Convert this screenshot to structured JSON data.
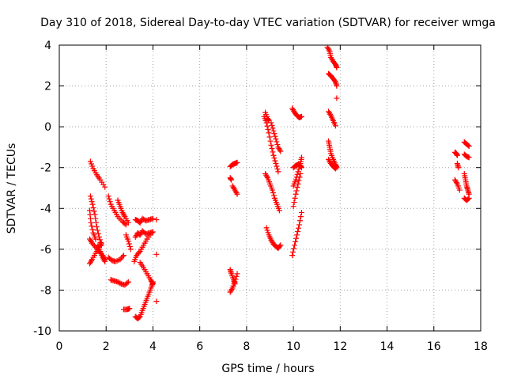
{
  "chart_data": {
    "type": "scatter",
    "title": "Day 310 of 2018, Sidereal Day-to-day VTEC variation (SDTVAR) for receiver wmga",
    "xlabel": "GPS time / hours",
    "ylabel": "SDTVAR / TECUs",
    "xlim": [
      0,
      18
    ],
    "ylim": [
      -10,
      4
    ],
    "xticks": [
      0,
      2,
      4,
      6,
      8,
      10,
      12,
      14,
      16,
      18
    ],
    "yticks": [
      -10,
      -8,
      -6,
      -4,
      -2,
      0,
      2,
      4
    ],
    "grid": true,
    "marker": "+",
    "marker_color": "#ff0000",
    "tracks": [
      {
        "x": [
          1.33,
          1.45,
          1.6,
          1.75,
          1.95
        ],
        "y": [
          -1.7,
          -2.05,
          -2.35,
          -2.6,
          -2.95
        ]
      },
      {
        "x": [
          1.33,
          1.42,
          1.52,
          1.6,
          1.7,
          1.8
        ],
        "y": [
          -3.4,
          -3.8,
          -4.3,
          -4.9,
          -5.4,
          -5.8
        ]
      },
      {
        "x": [
          1.3,
          1.35,
          1.45,
          1.55
        ],
        "y": [
          -4.1,
          -4.7,
          -5.2,
          -5.5
        ]
      },
      {
        "x": [
          1.3,
          1.4,
          1.55,
          1.7,
          1.85,
          1.95
        ],
        "y": [
          -5.5,
          -5.7,
          -5.9,
          -6.1,
          -6.3,
          -6.5
        ]
      },
      {
        "x": [
          1.3,
          1.4,
          1.55,
          1.7,
          1.8
        ],
        "y": [
          -6.7,
          -6.5,
          -6.2,
          -5.9,
          -5.7
        ]
      },
      {
        "x": [
          1.65,
          1.75,
          1.85,
          1.95
        ],
        "y": [
          -5.8,
          -6.1,
          -6.4,
          -6.6
        ]
      },
      {
        "x": [
          2.1,
          2.2,
          2.35,
          2.5,
          2.7,
          2.85
        ],
        "y": [
          -3.4,
          -3.8,
          -4.1,
          -4.4,
          -4.65,
          -4.8
        ]
      },
      {
        "x": [
          2.5,
          2.6,
          2.7,
          2.8,
          2.95
        ],
        "y": [
          -3.6,
          -3.9,
          -4.2,
          -4.4,
          -4.7
        ]
      },
      {
        "x": [
          2.1,
          2.25,
          2.4,
          2.6,
          2.75
        ],
        "y": [
          -6.4,
          -6.55,
          -6.6,
          -6.5,
          -6.3
        ]
      },
      {
        "x": [
          2.85,
          2.95,
          3.05
        ],
        "y": [
          -5.3,
          -5.6,
          -6.0
        ]
      },
      {
        "x": [
          2.2,
          2.35,
          2.5,
          2.65,
          2.8,
          2.95
        ],
        "y": [
          -7.5,
          -7.55,
          -7.6,
          -7.7,
          -7.75,
          -7.6
        ]
      },
      {
        "x": [
          2.75,
          2.9,
          3.0
        ],
        "y": [
          -8.95,
          -8.95,
          -8.9
        ]
      },
      {
        "x": [
          3.25,
          3.35,
          3.45,
          3.55,
          3.7,
          3.85,
          4.0
        ],
        "y": [
          -4.55,
          -4.6,
          -4.7,
          -4.5,
          -4.6,
          -4.55,
          -4.5
        ]
      },
      {
        "x": [
          3.25,
          3.35,
          3.45,
          3.55,
          3.7,
          3.85,
          4.0
        ],
        "y": [
          -5.4,
          -5.2,
          -5.3,
          -5.1,
          -5.25,
          -5.2,
          -5.15
        ]
      },
      {
        "x": [
          3.2,
          3.3,
          3.45,
          3.6,
          3.75,
          3.95
        ],
        "y": [
          -6.6,
          -6.3,
          -6.1,
          -5.8,
          -5.5,
          -5.2
        ]
      },
      {
        "x": [
          3.45,
          3.6,
          3.75,
          3.9,
          4.0
        ],
        "y": [
          -6.65,
          -6.9,
          -7.2,
          -7.5,
          -7.7
        ]
      },
      {
        "x": [
          3.25,
          3.35,
          3.45,
          3.55,
          3.65,
          3.75,
          3.85,
          3.95,
          4.0
        ],
        "y": [
          -9.3,
          -9.4,
          -9.3,
          -9.0,
          -8.7,
          -8.4,
          -8.1,
          -7.8,
          -7.6
        ]
      },
      {
        "x": [
          4.15
        ],
        "y": [
          -8.55
        ]
      },
      {
        "x": [
          4.15
        ],
        "y": [
          -6.25
        ]
      },
      {
        "x": [
          4.15
        ],
        "y": [
          -4.55
        ]
      },
      {
        "x": [
          7.3,
          7.4,
          7.5,
          7.6
        ],
        "y": [
          -1.95,
          -1.85,
          -1.8,
          -1.75
        ]
      },
      {
        "x": [
          7.3,
          7.35
        ],
        "y": [
          -2.5,
          -2.6
        ]
      },
      {
        "x": [
          7.4,
          7.5,
          7.6
        ],
        "y": [
          -2.9,
          -3.1,
          -3.3
        ]
      },
      {
        "x": [
          7.3,
          7.35,
          7.45,
          7.5
        ],
        "y": [
          -7.0,
          -7.2,
          -7.5,
          -7.7
        ]
      },
      {
        "x": [
          7.3,
          7.4,
          7.5,
          7.6
        ],
        "y": [
          -8.1,
          -7.9,
          -7.6,
          -7.2
        ]
      },
      {
        "x": [
          8.75,
          8.85,
          8.95,
          9.05,
          9.15,
          9.25,
          9.35
        ],
        "y": [
          0.5,
          0.2,
          -0.3,
          -0.9,
          -1.4,
          -1.8,
          -2.2
        ]
      },
      {
        "x": [
          8.8,
          8.9,
          8.95
        ],
        "y": [
          0.7,
          0.4,
          0.3
        ]
      },
      {
        "x": [
          9.05,
          9.15,
          9.25,
          9.35,
          9.45
        ],
        "y": [
          0.2,
          -0.2,
          -0.6,
          -1.0,
          -1.2
        ]
      },
      {
        "x": [
          8.8,
          8.9,
          9.0,
          9.1,
          9.2,
          9.3,
          9.4
        ],
        "y": [
          -2.3,
          -2.5,
          -2.8,
          -3.1,
          -3.5,
          -3.8,
          -4.1
        ]
      },
      {
        "x": [
          8.85,
          8.95,
          9.05,
          9.15,
          9.25,
          9.35,
          9.45
        ],
        "y": [
          -4.95,
          -5.3,
          -5.55,
          -5.75,
          -5.85,
          -5.95,
          -5.8
        ]
      },
      {
        "x": [
          9.95,
          10.05,
          10.15,
          10.25,
          10.35
        ],
        "y": [
          0.9,
          0.7,
          0.55,
          0.45,
          0.5
        ]
      },
      {
        "x": [
          10.0,
          10.1,
          10.2,
          10.3,
          10.35
        ],
        "y": [
          -2.9,
          -2.6,
          -2.2,
          -1.8,
          -1.5
        ]
      },
      {
        "x": [
          10.0,
          10.1,
          10.2,
          10.3,
          10.35
        ],
        "y": [
          -2.0,
          -1.9,
          -1.85,
          -1.9,
          -2.0
        ]
      },
      {
        "x": [
          10.0,
          10.1,
          10.2,
          10.3
        ],
        "y": [
          -3.9,
          -3.3,
          -2.8,
          -2.3
        ]
      },
      {
        "x": [
          9.95,
          10.05,
          10.15,
          10.25,
          10.35
        ],
        "y": [
          -6.3,
          -5.8,
          -5.3,
          -4.8,
          -4.2
        ]
      },
      {
        "x": [
          11.45,
          11.55,
          11.6,
          11.7,
          11.8,
          11.85
        ],
        "y": [
          3.9,
          3.7,
          3.4,
          3.2,
          3.05,
          2.9
        ]
      },
      {
        "x": [
          11.5,
          11.6,
          11.7,
          11.8,
          11.85
        ],
        "y": [
          2.6,
          2.5,
          2.35,
          2.2,
          2.0
        ]
      },
      {
        "x": [
          11.85
        ],
        "y": [
          1.4
        ]
      },
      {
        "x": [
          11.5,
          11.6,
          11.7,
          11.8
        ],
        "y": [
          0.75,
          0.55,
          0.3,
          0.05
        ]
      },
      {
        "x": [
          11.5,
          11.55,
          11.6,
          11.7,
          11.8,
          11.85
        ],
        "y": [
          -0.7,
          -1.0,
          -1.3,
          -1.6,
          -1.85,
          -2.0
        ]
      },
      {
        "x": [
          11.5,
          11.6,
          11.7,
          11.8
        ],
        "y": [
          -1.6,
          -1.8,
          -1.95,
          -2.05
        ]
      },
      {
        "x": [
          16.9,
          16.95,
          17.0
        ],
        "y": [
          -1.25,
          -1.3,
          -1.4
        ]
      },
      {
        "x": [
          16.9,
          17.0,
          17.1
        ],
        "y": [
          -2.6,
          -2.8,
          -3.1
        ]
      },
      {
        "x": [
          17.0,
          17.05
        ],
        "y": [
          -1.8,
          -2.0
        ]
      },
      {
        "x": [
          17.3,
          17.4,
          17.5
        ],
        "y": [
          -0.75,
          -0.85,
          -0.95
        ]
      },
      {
        "x": [
          17.3,
          17.4,
          17.5
        ],
        "y": [
          -1.35,
          -1.45,
          -1.5
        ]
      },
      {
        "x": [
          17.3,
          17.35,
          17.4,
          17.45,
          17.5
        ],
        "y": [
          -2.3,
          -2.6,
          -2.9,
          -3.1,
          -3.3
        ]
      },
      {
        "x": [
          17.3,
          17.4,
          17.5
        ],
        "y": [
          -3.5,
          -3.6,
          -3.5
        ]
      }
    ]
  }
}
